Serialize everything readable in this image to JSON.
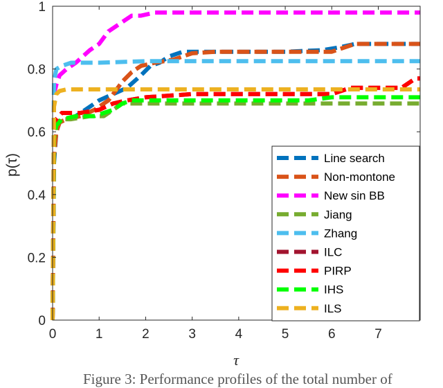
{
  "caption": "Figure 3: Performance profiles of the total number of",
  "chart_data": {
    "type": "line",
    "title": "",
    "xlabel": "τ",
    "ylabel": "p(τ)",
    "xlim": [
      0,
      7.9
    ],
    "ylim": [
      0,
      1
    ],
    "xticks": [
      0,
      1,
      2,
      3,
      4,
      5,
      6,
      7
    ],
    "yticks": [
      0,
      0.2,
      0.4,
      0.6,
      0.8,
      1
    ],
    "ytick_labels": [
      "0",
      "0.2",
      "0.4",
      "0.6",
      "0.8",
      "1"
    ],
    "grid": false,
    "legend_position": "lower-right",
    "series": [
      {
        "name": "Line search",
        "color": "#0072BD",
        "x": [
          0,
          0.03,
          0.08,
          0.15,
          0.3,
          0.5,
          0.8,
          1.0,
          1.3,
          1.6,
          1.9,
          2.1,
          2.3,
          2.5,
          2.8,
          3.0,
          3.5,
          4.0,
          5.0,
          5.8,
          6.2,
          6.5,
          7.9
        ],
        "y": [
          0,
          0.5,
          0.6,
          0.63,
          0.64,
          0.65,
          0.68,
          0.7,
          0.72,
          0.74,
          0.78,
          0.81,
          0.82,
          0.84,
          0.855,
          0.855,
          0.855,
          0.855,
          0.855,
          0.86,
          0.87,
          0.88,
          0.88
        ]
      },
      {
        "name": "Non-montone",
        "color": "#D95319",
        "x": [
          0,
          0.03,
          0.08,
          0.15,
          0.3,
          0.6,
          0.9,
          1.2,
          1.5,
          1.7,
          1.9,
          2.2,
          2.6,
          3.0,
          3.5,
          4.5,
          6.0,
          6.5,
          7.9
        ],
        "y": [
          0,
          0.52,
          0.6,
          0.63,
          0.64,
          0.65,
          0.67,
          0.7,
          0.76,
          0.79,
          0.81,
          0.82,
          0.83,
          0.85,
          0.855,
          0.855,
          0.855,
          0.88,
          0.88
        ],
        "dash": "18 7"
      },
      {
        "name": "New sin BB",
        "color": "#FF00FF",
        "x": [
          0,
          0.03,
          0.08,
          0.15,
          0.3,
          0.5,
          0.8,
          1.0,
          1.2,
          1.5,
          1.7,
          1.9,
          2.2,
          7.9
        ],
        "y": [
          0,
          0.72,
          0.75,
          0.78,
          0.8,
          0.82,
          0.86,
          0.88,
          0.92,
          0.95,
          0.97,
          0.97,
          0.98,
          0.98
        ]
      },
      {
        "name": "Jiang",
        "color": "#77AC30",
        "x": [
          0,
          0.03,
          0.08,
          0.2,
          0.4,
          0.8,
          1.1,
          1.3,
          1.5,
          1.7,
          2.2,
          7.9
        ],
        "y": [
          0,
          0.6,
          0.63,
          0.64,
          0.64,
          0.65,
          0.65,
          0.67,
          0.69,
          0.69,
          0.69,
          0.69
        ]
      },
      {
        "name": "Zhang",
        "color": "#4DBEEE",
        "x": [
          0,
          0.03,
          0.08,
          0.2,
          0.4,
          1.0,
          2.0,
          7.9
        ],
        "y": [
          0,
          0.76,
          0.8,
          0.81,
          0.82,
          0.82,
          0.825,
          0.825
        ]
      },
      {
        "name": "ILC",
        "color": "#A2142F",
        "x": [
          0,
          0.03,
          0.08,
          0.2,
          0.6,
          1.0,
          1.3,
          1.6,
          2.0,
          3.0,
          4.0,
          6.0,
          6.4,
          7.5,
          7.8,
          7.9
        ],
        "y": [
          0,
          0.6,
          0.64,
          0.66,
          0.66,
          0.67,
          0.69,
          0.7,
          0.71,
          0.72,
          0.72,
          0.72,
          0.74,
          0.74,
          0.77,
          0.77
        ]
      },
      {
        "name": "PIRP",
        "color": "#FF0000",
        "x": [
          0,
          0.03,
          0.08,
          0.2,
          0.6,
          1.0,
          1.3,
          1.6,
          2.0,
          3.0,
          4.0,
          6.0,
          6.4,
          7.5,
          7.8,
          7.9
        ],
        "y": [
          0,
          0.6,
          0.64,
          0.66,
          0.66,
          0.67,
          0.69,
          0.7,
          0.71,
          0.72,
          0.72,
          0.72,
          0.74,
          0.74,
          0.77,
          0.77
        ]
      },
      {
        "name": "IHS",
        "color": "#00FF00",
        "x": [
          0,
          0.03,
          0.08,
          0.2,
          0.5,
          0.9,
          1.1,
          1.3,
          1.5,
          1.7,
          2.5,
          5.5,
          6.0,
          7.9
        ],
        "y": [
          0,
          0.58,
          0.62,
          0.64,
          0.65,
          0.65,
          0.66,
          0.67,
          0.69,
          0.7,
          0.7,
          0.7,
          0.71,
          0.71
        ]
      },
      {
        "name": "ILS",
        "color": "#EDB120",
        "x": [
          0,
          0.03,
          0.08,
          0.15,
          0.3,
          0.6,
          1.0,
          2.0,
          7.9
        ],
        "y": [
          0,
          0.68,
          0.72,
          0.73,
          0.735,
          0.735,
          0.735,
          0.735,
          0.735
        ]
      }
    ]
  }
}
